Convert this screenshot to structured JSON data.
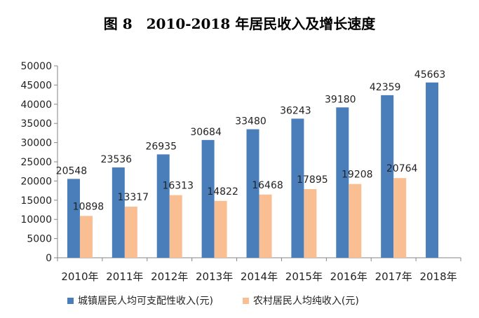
{
  "chart_data": {
    "type": "bar",
    "title": "图 8　2010-2018 年居民收入及增长速度",
    "categories": [
      "2010年",
      "2011年",
      "2012年",
      "2013年",
      "2014年",
      "2015年",
      "2016年",
      "2017年",
      "2018年"
    ],
    "series": [
      {
        "name": "城镇居民人均可支配性收入(元)",
        "color": "#4a7ebb",
        "values": [
          20548,
          23536,
          26935,
          30684,
          33480,
          36243,
          39180,
          42359,
          45663
        ]
      },
      {
        "name": "农村居民人均纯收入(元)",
        "color": "#f9be92",
        "values": [
          10898,
          13317,
          16313,
          14822,
          16468,
          17895,
          19208,
          20764,
          null
        ]
      }
    ],
    "ylim": [
      0,
      50000
    ],
    "yticks": [
      0,
      5000,
      10000,
      15000,
      20000,
      25000,
      30000,
      35000,
      40000,
      45000,
      50000
    ],
    "xlabel": "",
    "ylabel": "",
    "grid": false,
    "legend_position": "bottom"
  }
}
